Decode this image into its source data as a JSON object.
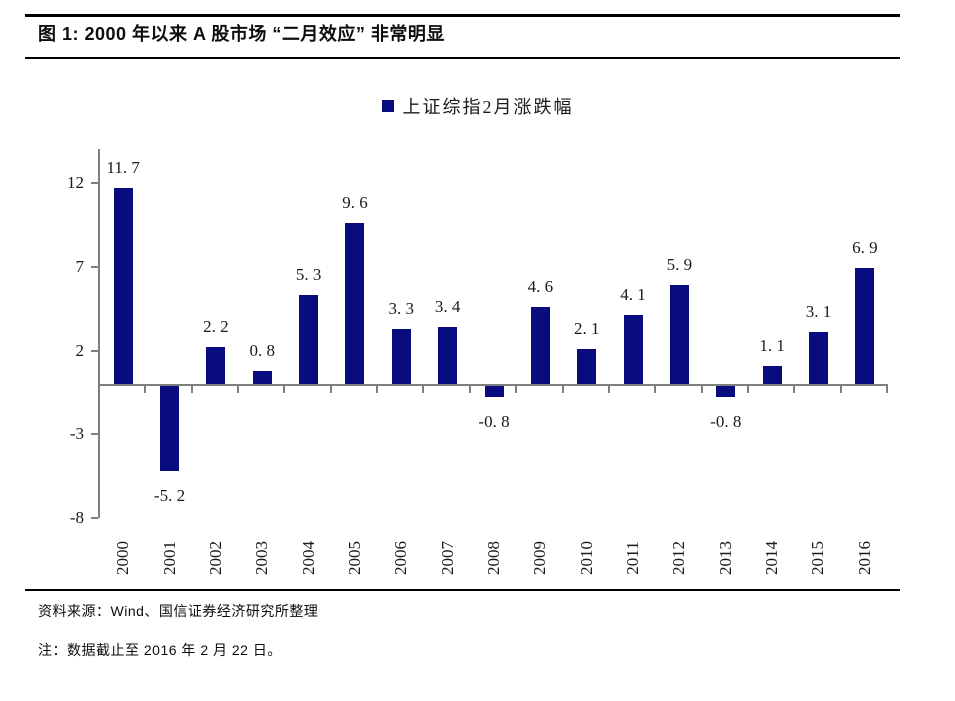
{
  "title": "图 1: 2000 年以来 A 股市场 “二月效应” 非常明显",
  "legend": {
    "label": "上证综指2月涨跌幅",
    "swatch_color": "#0b0b80"
  },
  "chart_data": {
    "type": "bar",
    "title": "上证综指2月涨跌幅",
    "categories": [
      "2000",
      "2001",
      "2002",
      "2003",
      "2004",
      "2005",
      "2006",
      "2007",
      "2008",
      "2009",
      "2010",
      "2011",
      "2012",
      "2013",
      "2014",
      "2015",
      "2016"
    ],
    "values": [
      11.7,
      -5.2,
      2.2,
      0.8,
      5.3,
      9.6,
      3.3,
      3.4,
      -0.8,
      4.6,
      2.1,
      4.1,
      5.9,
      -0.8,
      1.1,
      3.1,
      6.9
    ],
    "series": [
      {
        "name": "上证综指2月涨跌幅",
        "values": [
          11.7,
          -5.2,
          2.2,
          0.8,
          5.3,
          9.6,
          3.3,
          3.4,
          -0.8,
          4.6,
          2.1,
          4.1,
          5.9,
          -0.8,
          1.1,
          3.1,
          6.9
        ]
      }
    ],
    "xlabel": "",
    "ylabel": "",
    "y_ticks": [
      12,
      7,
      2,
      -3,
      -8
    ],
    "ylim": [
      -8,
      14
    ],
    "grid": false,
    "data_labels": true,
    "legend_position": "top-center",
    "bar_color": "#0b0b80",
    "axis_color": "#7f7f7f",
    "label_color": "#1a1a1a"
  },
  "footer": {
    "source": "资料来源：Wind、国信证券经济研究所整理",
    "note": "注：数据截止至 2016 年 2 月 22 日。"
  }
}
